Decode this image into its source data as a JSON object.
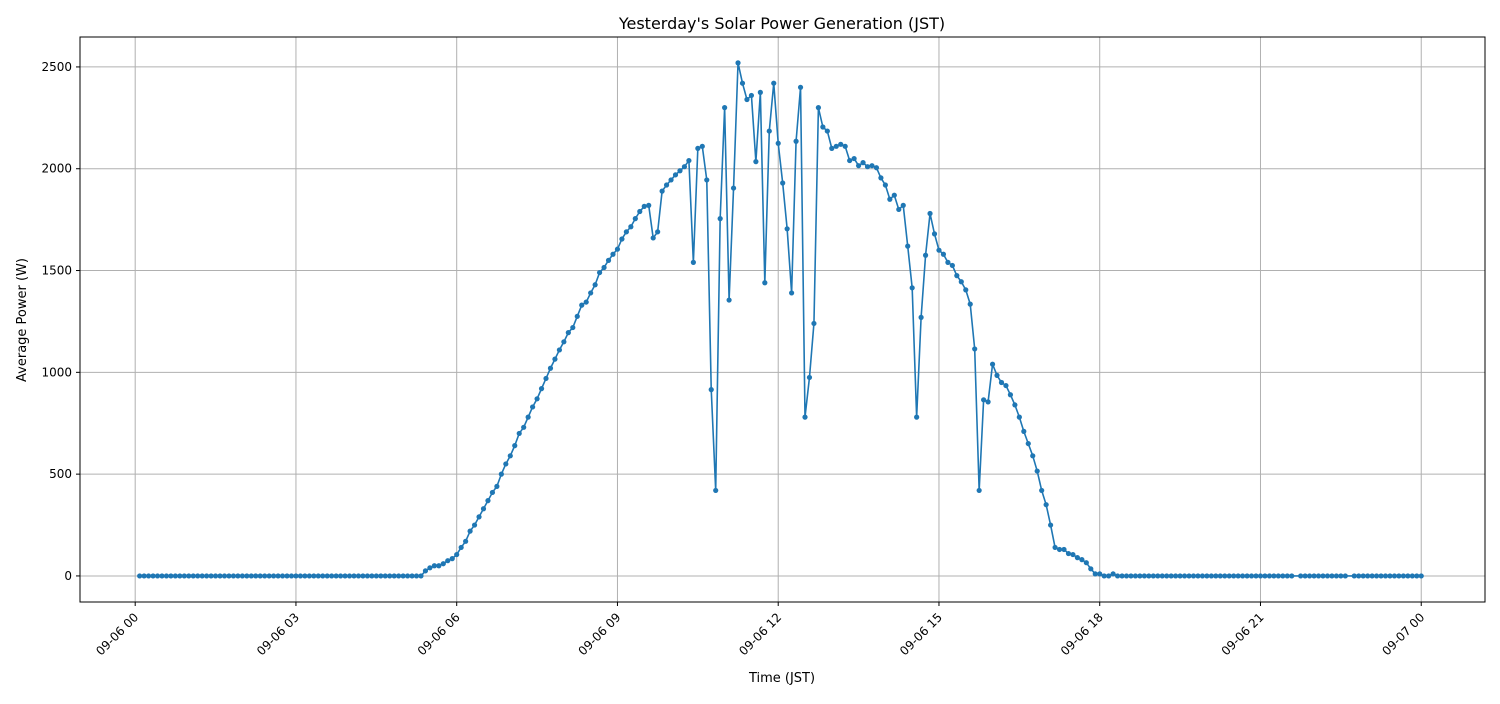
{
  "chart_data": {
    "type": "line",
    "title": "Yesterday's Solar Power Generation (JST)",
    "xlabel": "Time (JST)",
    "ylabel": "Average Power (W)",
    "x_start": "09-06 00:05",
    "x_interval_minutes": 5,
    "xlim_hours": [
      -1.03,
      25.19
    ],
    "ylim": [
      -128,
      2647
    ],
    "grid": true,
    "color": "#1f77b4",
    "marker": "circle",
    "x_ticks": [
      {
        "hour": 0,
        "label": "09-06 00"
      },
      {
        "hour": 3,
        "label": "09-06 03"
      },
      {
        "hour": 6,
        "label": "09-06 06"
      },
      {
        "hour": 9,
        "label": "09-06 09"
      },
      {
        "hour": 12,
        "label": "09-06 12"
      },
      {
        "hour": 15,
        "label": "09-06 15"
      },
      {
        "hour": 18,
        "label": "09-06 18"
      },
      {
        "hour": 21,
        "label": "09-06 21"
      },
      {
        "hour": 24,
        "label": "09-07 00"
      }
    ],
    "y_ticks": [
      {
        "value": 0,
        "label": "0"
      },
      {
        "value": 500,
        "label": "500"
      },
      {
        "value": 1000,
        "label": "1000"
      },
      {
        "value": 1500,
        "label": "1500"
      },
      {
        "value": 2000,
        "label": "2000"
      },
      {
        "value": 2500,
        "label": "2500"
      }
    ],
    "values": [
      0,
      0,
      0,
      0,
      0,
      0,
      0,
      0,
      0,
      0,
      0,
      0,
      0,
      0,
      0,
      0,
      0,
      0,
      0,
      0,
      0,
      0,
      0,
      0,
      0,
      0,
      0,
      0,
      0,
      0,
      0,
      0,
      0,
      0,
      0,
      0,
      0,
      0,
      0,
      0,
      0,
      0,
      0,
      0,
      0,
      0,
      0,
      0,
      0,
      0,
      0,
      0,
      0,
      0,
      0,
      0,
      0,
      0,
      0,
      0,
      0,
      0,
      0,
      0,
      25,
      40,
      50,
      50,
      60,
      75,
      85,
      105,
      140,
      170,
      220,
      250,
      290,
      330,
      370,
      410,
      440,
      500,
      550,
      590,
      640,
      700,
      730,
      780,
      830,
      870,
      920,
      970,
      1020,
      1065,
      1110,
      1150,
      1195,
      1220,
      1275,
      1330,
      1345,
      1390,
      1430,
      1490,
      1515,
      1550,
      1580,
      1605,
      1655,
      1690,
      1715,
      1755,
      1790,
      1815,
      1820,
      1660,
      1690,
      1890,
      1920,
      1945,
      1970,
      1990,
      2010,
      2040,
      1540,
      2100,
      2110,
      1945,
      915,
      420,
      1755,
      2300,
      1355,
      1905,
      2520,
      2420,
      2340,
      2360,
      2035,
      2375,
      1440,
      2185,
      2420,
      2125,
      1930,
      1705,
      1390,
      2135,
      2400,
      780,
      975,
      1240,
      2300,
      2205,
      2185,
      2100,
      2110,
      2120,
      2110,
      2040,
      2050,
      2015,
      2030,
      2010,
      2015,
      2005,
      1955,
      1920,
      1850,
      1870,
      1800,
      1820,
      1620,
      1415,
      780,
      1270,
      1575,
      1780,
      1680,
      1600,
      1580,
      1540,
      1525,
      1475,
      1445,
      1405,
      1335,
      1115,
      420,
      865,
      855,
      1040,
      985,
      950,
      935,
      890,
      840,
      780,
      710,
      650,
      590,
      515,
      420,
      350,
      250,
      140,
      130,
      130,
      110,
      105,
      90,
      80,
      65,
      35,
      10,
      10,
      0,
      0,
      10,
      0,
      0,
      0,
      0,
      0,
      0,
      0,
      0,
      0,
      0,
      0,
      0,
      0,
      0,
      0,
      0,
      0,
      0,
      0,
      0,
      0,
      0,
      0,
      0,
      0,
      0,
      0,
      0,
      0,
      0,
      0,
      0,
      0,
      0,
      0,
      0,
      0,
      0,
      0,
      0,
      null,
      0,
      0,
      0,
      0,
      0,
      0,
      0,
      0,
      0,
      0,
      0,
      null,
      0,
      0,
      0,
      0,
      0,
      0,
      0,
      0,
      0,
      0,
      0,
      0,
      0,
      0,
      0,
      0
    ]
  }
}
